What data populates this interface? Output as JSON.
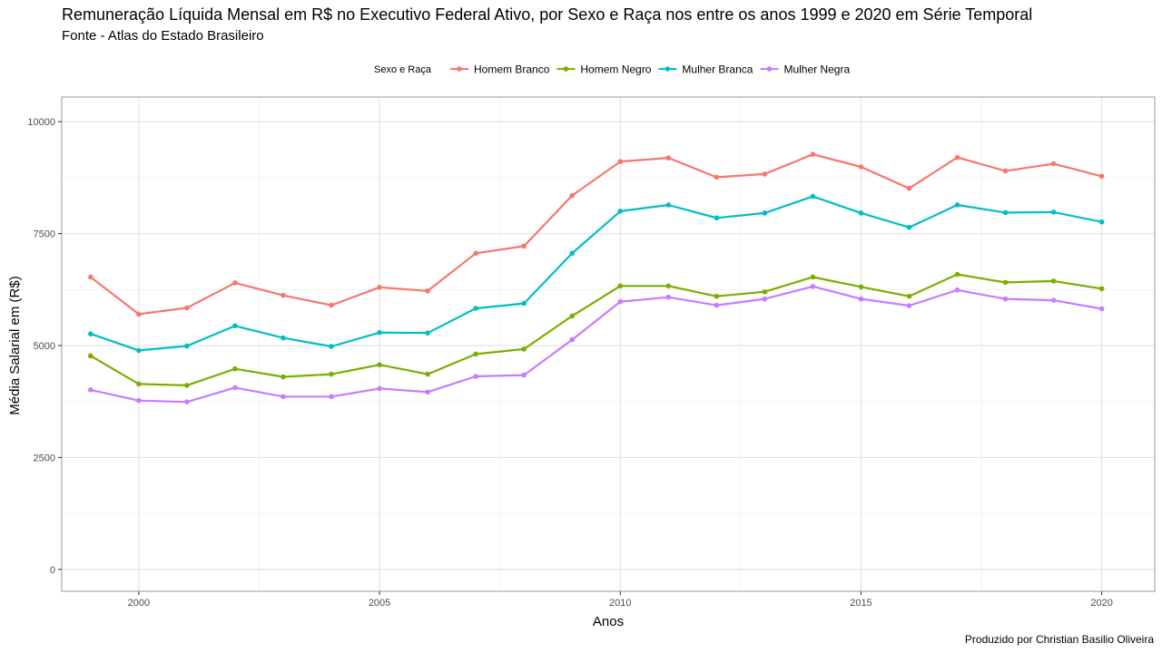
{
  "title": "Remuneração Líquida Mensal em R$ no Executivo Federal Ativo, por Sexo e Raça nos entre os anos 1999 e 2020 em Série Temporal",
  "subtitle": "Fonte - Atlas do Estado Brasileiro",
  "caption": "Produzido por Christian Basilio Oliveira",
  "chart_data": {
    "type": "line",
    "title": "Remuneração Líquida Mensal em R$ no Executivo Federal Ativo, por Sexo e Raça nos entre os anos 1999 e 2020 em Série Temporal",
    "xlabel": "Anos",
    "ylabel": "Média Salarial em (R$)",
    "x": [
      1999,
      2000,
      2001,
      2002,
      2003,
      2004,
      2005,
      2006,
      2007,
      2008,
      2009,
      2010,
      2011,
      2012,
      2013,
      2014,
      2015,
      2016,
      2017,
      2018,
      2019,
      2020
    ],
    "xlim": [
      1998.4,
      2021.1
    ],
    "ylim": [
      -490,
      10550
    ],
    "x_ticks": [
      2000,
      2005,
      2010,
      2015,
      2020
    ],
    "y_ticks": [
      0,
      2500,
      5000,
      7500,
      10000
    ],
    "grid": true,
    "legend": {
      "title": "Sexo e Raça",
      "position": "top"
    },
    "series": [
      {
        "name": "Homem Branco",
        "color": "#F8766D",
        "values": [
          6530,
          5700,
          5840,
          6400,
          6120,
          5900,
          6300,
          6220,
          7060,
          7220,
          8350,
          9110,
          9190,
          8760,
          8830,
          9270,
          8990,
          8510,
          9200,
          8900,
          9060,
          8780
        ]
      },
      {
        "name": "Homem Negro",
        "color": "#7CAE00",
        "values": [
          4770,
          4140,
          4110,
          4480,
          4300,
          4360,
          4570,
          4360,
          4810,
          4920,
          5660,
          6330,
          6330,
          6100,
          6200,
          6530,
          6310,
          6100,
          6590,
          6410,
          6440,
          6270
        ]
      },
      {
        "name": "Mulher Branca",
        "color": "#00BFC4",
        "values": [
          5260,
          4890,
          4990,
          5440,
          5170,
          4980,
          5290,
          5280,
          5830,
          5940,
          7060,
          8000,
          8140,
          7850,
          7960,
          8330,
          7960,
          7640,
          8140,
          7970,
          7980,
          7760
        ]
      },
      {
        "name": "Mulher Negra",
        "color": "#C77CFF",
        "values": [
          4010,
          3770,
          3740,
          4060,
          3860,
          3860,
          4040,
          3960,
          4310,
          4340,
          5130,
          5980,
          6080,
          5900,
          6040,
          6320,
          6040,
          5890,
          6240,
          6040,
          6010,
          5820
        ]
      }
    ]
  }
}
